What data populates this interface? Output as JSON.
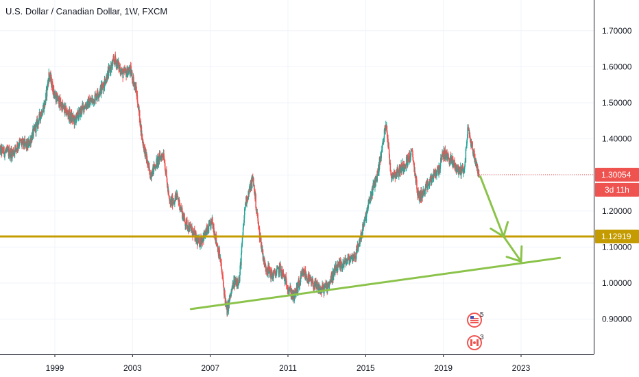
{
  "chart_data": {
    "type": "candlestick",
    "title": "U.S. Dollar / Canadian Dollar, 1W, FXCM",
    "x_unit": "year",
    "x_ticks": [
      "1999",
      "2003",
      "2007",
      "2011",
      "2015",
      "2019",
      "2023"
    ],
    "xlim": [
      1996.0,
      2026.0
    ],
    "y_ticks": [
      "0.90000",
      "1.00000",
      "1.10000",
      "1.20000",
      "1.30000",
      "1.40000",
      "1.50000",
      "1.60000",
      "1.70000"
    ],
    "ylim": [
      0.82,
      1.78
    ],
    "price_path": [
      [
        1996.0,
        1.37
      ],
      [
        1996.8,
        1.36
      ],
      [
        1997.2,
        1.39
      ],
      [
        1997.6,
        1.38
      ],
      [
        1998.0,
        1.43
      ],
      [
        1998.5,
        1.5
      ],
      [
        1998.7,
        1.58
      ],
      [
        1999.0,
        1.52
      ],
      [
        1999.5,
        1.48
      ],
      [
        2000.0,
        1.45
      ],
      [
        2000.5,
        1.49
      ],
      [
        2001.0,
        1.51
      ],
      [
        2001.4,
        1.54
      ],
      [
        2001.9,
        1.6
      ],
      [
        2002.1,
        1.62
      ],
      [
        2002.5,
        1.58
      ],
      [
        2002.9,
        1.59
      ],
      [
        2003.2,
        1.53
      ],
      [
        2003.5,
        1.4
      ],
      [
        2003.9,
        1.3
      ],
      [
        2004.3,
        1.34
      ],
      [
        2004.6,
        1.36
      ],
      [
        2004.9,
        1.22
      ],
      [
        2005.3,
        1.24
      ],
      [
        2005.7,
        1.17
      ],
      [
        2006.0,
        1.15
      ],
      [
        2006.4,
        1.11
      ],
      [
        2006.8,
        1.14
      ],
      [
        2007.1,
        1.17
      ],
      [
        2007.5,
        1.07
      ],
      [
        2007.85,
        0.92
      ],
      [
        2008.2,
        1.0
      ],
      [
        2008.5,
        1.01
      ],
      [
        2008.8,
        1.22
      ],
      [
        2009.2,
        1.29
      ],
      [
        2009.5,
        1.15
      ],
      [
        2009.8,
        1.05
      ],
      [
        2010.2,
        1.02
      ],
      [
        2010.6,
        1.04
      ],
      [
        2011.0,
        0.99
      ],
      [
        2011.3,
        0.96
      ],
      [
        2011.8,
        1.03
      ],
      [
        2012.2,
        1.0
      ],
      [
        2012.7,
        0.98
      ],
      [
        2013.0,
        0.99
      ],
      [
        2013.5,
        1.04
      ],
      [
        2014.0,
        1.06
      ],
      [
        2014.5,
        1.08
      ],
      [
        2014.9,
        1.16
      ],
      [
        2015.3,
        1.25
      ],
      [
        2015.6,
        1.3
      ],
      [
        2015.9,
        1.39
      ],
      [
        2016.05,
        1.45
      ],
      [
        2016.3,
        1.3
      ],
      [
        2016.7,
        1.31
      ],
      [
        2017.0,
        1.33
      ],
      [
        2017.4,
        1.36
      ],
      [
        2017.7,
        1.24
      ],
      [
        2018.0,
        1.25
      ],
      [
        2018.4,
        1.29
      ],
      [
        2018.8,
        1.32
      ],
      [
        2019.0,
        1.36
      ],
      [
        2019.4,
        1.34
      ],
      [
        2019.8,
        1.31
      ],
      [
        2020.1,
        1.32
      ],
      [
        2020.25,
        1.43
      ],
      [
        2020.6,
        1.35
      ],
      [
        2020.85,
        1.30054
      ]
    ],
    "horizontal_line": {
      "value": 1.12919,
      "label": "1.12919",
      "color": "#c49b00"
    },
    "last_price": {
      "value": 1.30054,
      "label": "1.30054",
      "countdown": "3d 11h",
      "color": "#ef5350"
    },
    "trendline": {
      "points": [
        [
          2006.0,
          0.928
        ],
        [
          2025.0,
          1.07
        ]
      ],
      "color": "#8bc34a"
    },
    "projection_arrow": {
      "points": [
        [
          2020.9,
          1.296
        ],
        [
          2022.1,
          1.12919
        ],
        [
          2023.0,
          1.06
        ]
      ],
      "color": "#8bc34a"
    },
    "event_markers": [
      {
        "country": "US",
        "count": "5"
      },
      {
        "country": "CA",
        "count": "3"
      }
    ],
    "colors": {
      "up": "#26a69a",
      "down": "#ef5350",
      "grid": "#f0f3fa",
      "axis": "#131722"
    }
  }
}
